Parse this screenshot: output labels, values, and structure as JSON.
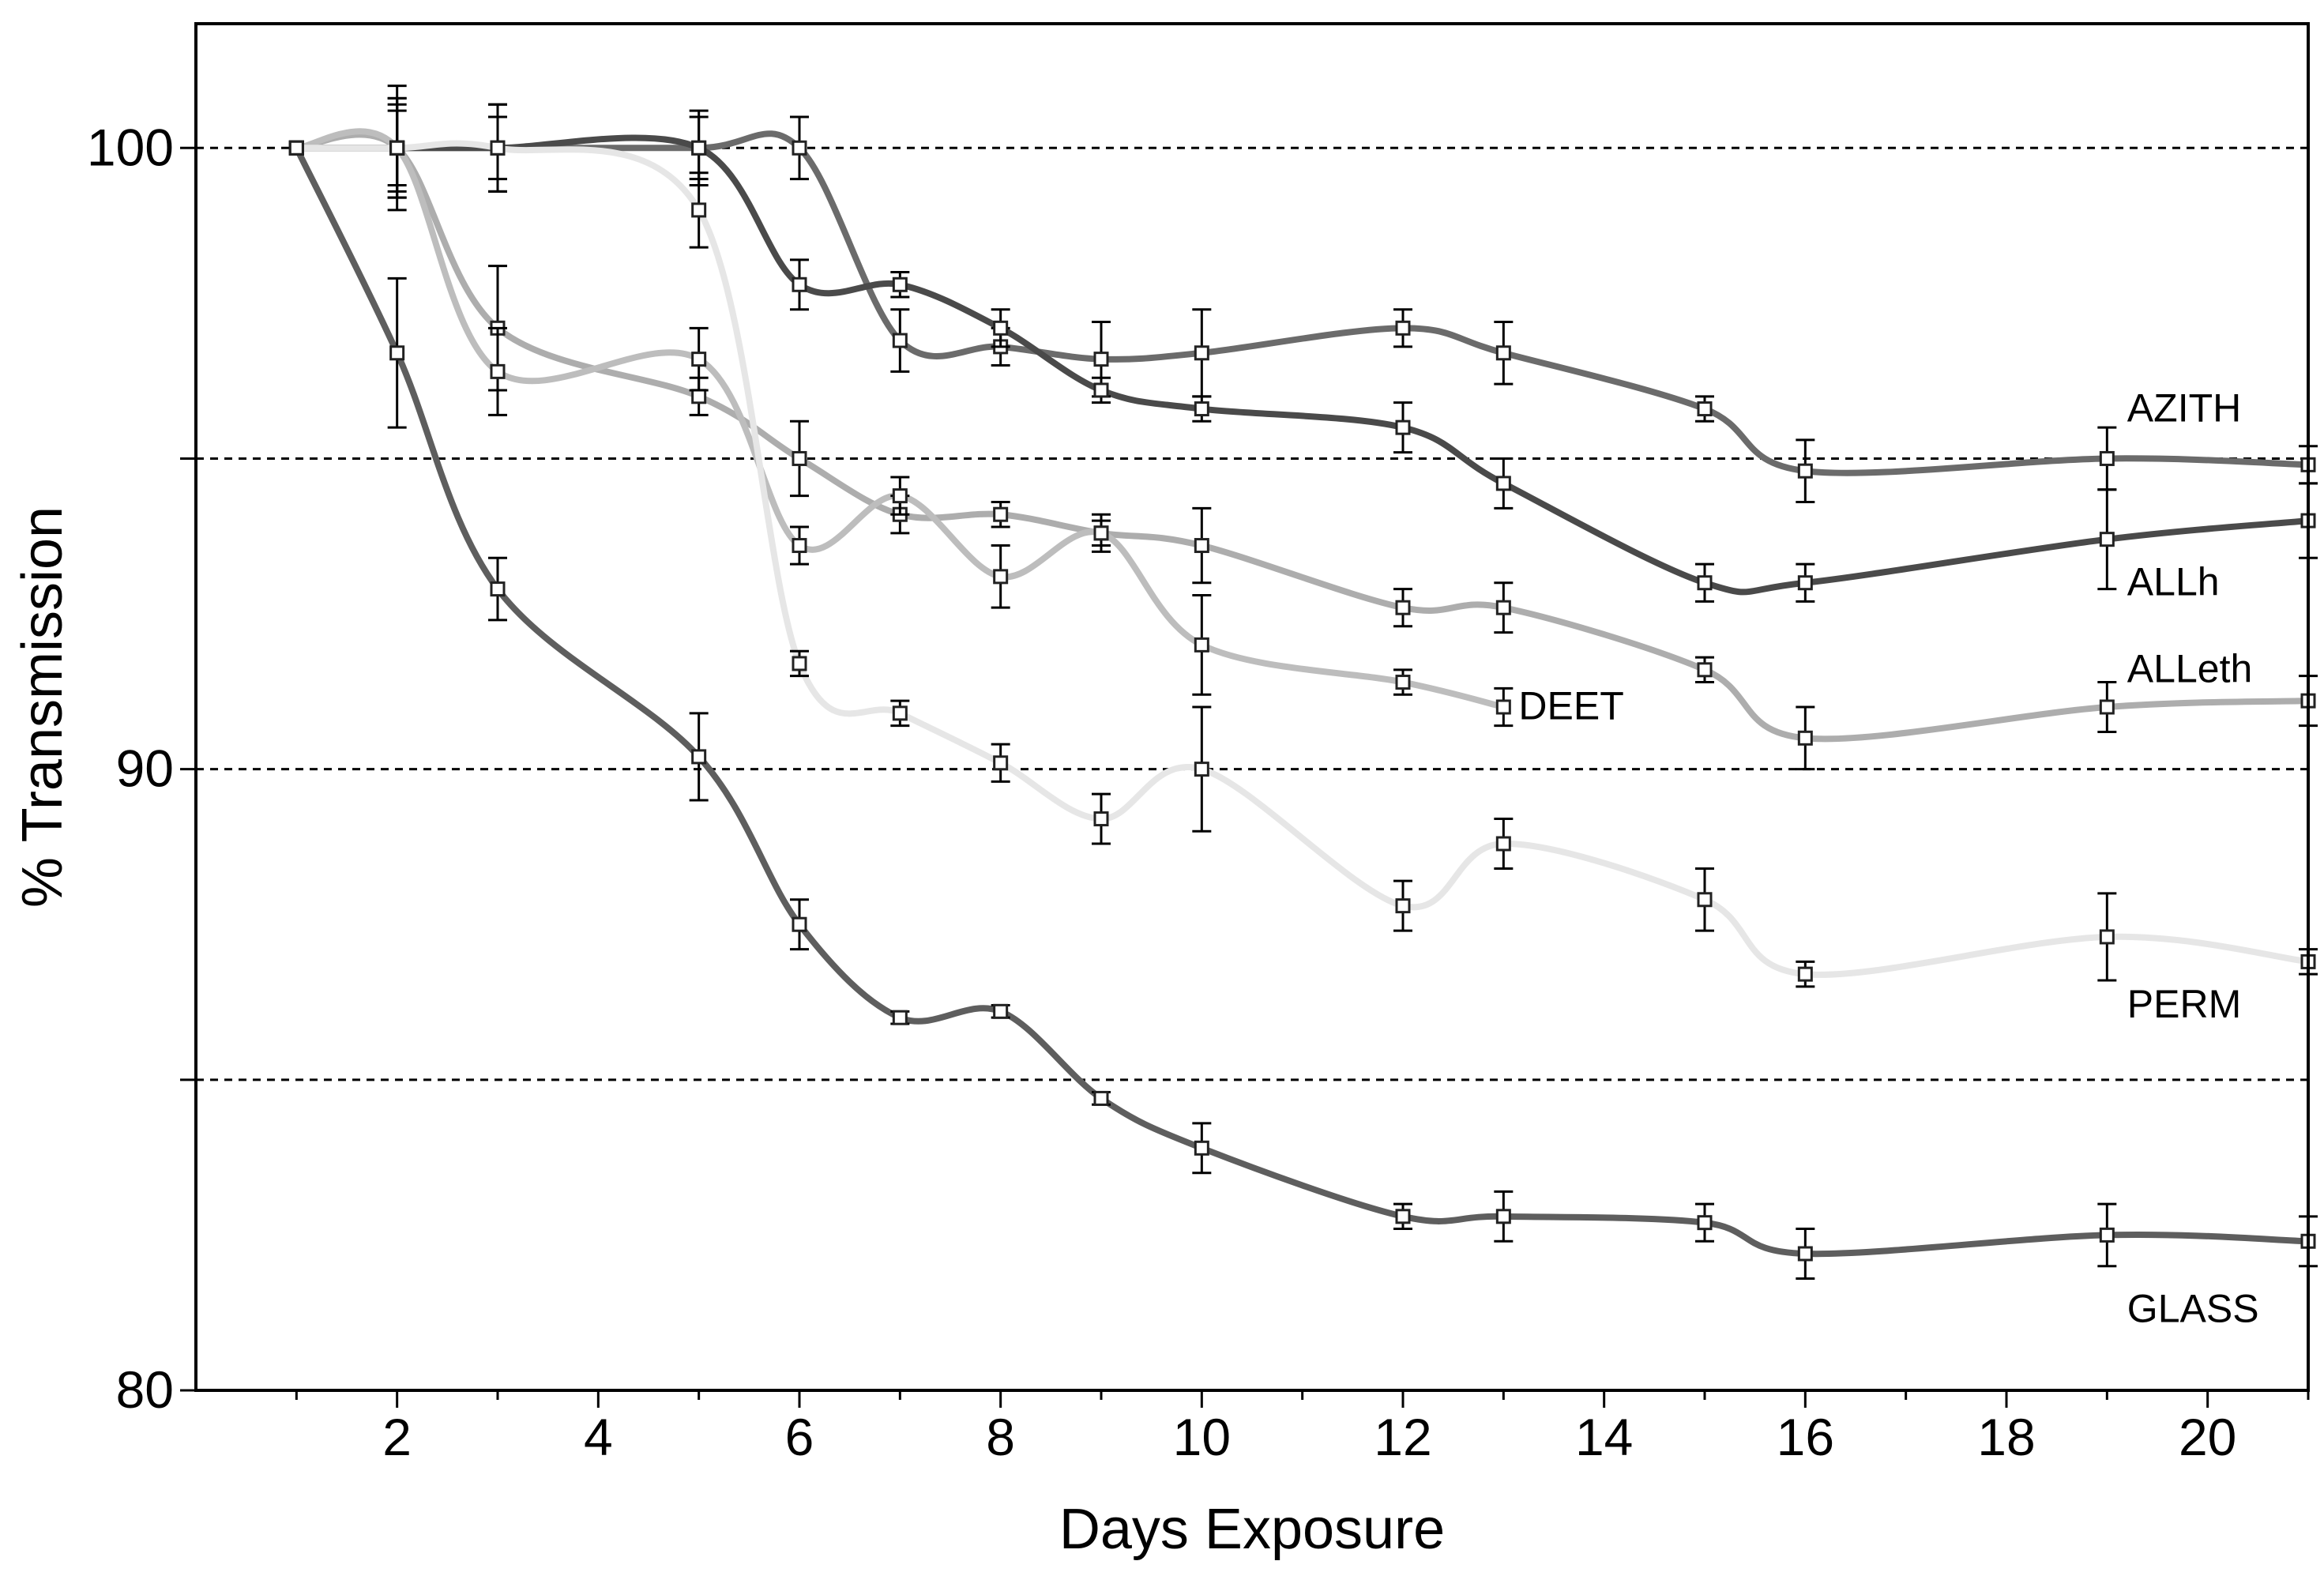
{
  "chart_data": {
    "type": "line",
    "xlabel": "Days Exposure",
    "ylabel": "% Transmission",
    "xlim": [
      0,
      21
    ],
    "ylim": [
      80,
      102
    ],
    "xticks_labeled": [
      2,
      4,
      6,
      8,
      10,
      12,
      14,
      16,
      18,
      20
    ],
    "yticks_labeled": [
      80,
      90,
      100
    ],
    "gridlines_y": [
      85,
      90,
      95,
      100
    ],
    "grid_style": "dashed horizontal",
    "series": [
      {
        "name": "AZITH",
        "color": "#6b6b6b",
        "x": [
          1,
          2,
          3,
          5,
          6,
          7,
          8,
          9,
          10,
          12,
          13,
          15,
          16,
          19,
          21
        ],
        "y": [
          100,
          100,
          100,
          100,
          100,
          96.9,
          96.8,
          96.6,
          96.7,
          97.1,
          96.7,
          95.8,
          94.8,
          95.0,
          94.9
        ],
        "err": [
          0,
          0.8,
          0.5,
          0.5,
          0.5,
          0.5,
          0.3,
          0.6,
          0.7,
          0.3,
          0.5,
          0.2,
          0.5,
          0.5,
          0.3
        ]
      },
      {
        "name": "ALLh",
        "color": "#4a4a4a",
        "x": [
          1,
          2,
          3,
          5,
          6,
          7,
          8,
          9,
          10,
          12,
          13,
          15,
          16,
          19,
          21
        ],
        "y": [
          100,
          100,
          100,
          100,
          97.8,
          97.8,
          97.1,
          96.1,
          95.8,
          95.5,
          94.6,
          93.0,
          93.0,
          93.7,
          94.0
        ],
        "err": [
          0,
          0.8,
          0.7,
          0.6,
          0.4,
          0.2,
          0.3,
          0.2,
          0.2,
          0.4,
          0.4,
          0.3,
          0.3,
          0.8,
          0.6
        ]
      },
      {
        "name": "ALLeth",
        "color": "#adadad",
        "x": [
          1,
          2,
          3,
          5,
          6,
          7,
          8,
          9,
          10,
          12,
          13,
          15,
          16,
          19,
          21
        ],
        "y": [
          100,
          100,
          97.1,
          96.0,
          95.0,
          94.1,
          94.1,
          93.8,
          93.6,
          92.6,
          92.6,
          91.6,
          90.5,
          91.0,
          91.1
        ],
        "err": [
          0,
          0.7,
          1.0,
          0.3,
          0.6,
          0.3,
          0.2,
          0.2,
          0.6,
          0.3,
          0.4,
          0.2,
          0.5,
          0.4,
          0.4
        ]
      },
      {
        "name": "DEET",
        "color": "#bdbdbd",
        "x": [
          1,
          2,
          3,
          5,
          6,
          7,
          8,
          9,
          10,
          12,
          13
        ],
        "y": [
          100,
          100,
          96.4,
          96.6,
          93.6,
          94.4,
          93.1,
          93.8,
          92.0,
          91.4,
          91.0
        ],
        "err": [
          0,
          1.0,
          0.7,
          0.5,
          0.3,
          0.3,
          0.5,
          0.3,
          0.8,
          0.2,
          0.3
        ]
      },
      {
        "name": "PERM",
        "color": "#e6e6e6",
        "x": [
          1,
          2,
          3,
          5,
          6,
          7,
          8,
          9,
          10,
          12,
          13,
          15,
          16,
          19,
          21
        ],
        "y": [
          100,
          100,
          100,
          99.0,
          91.7,
          90.9,
          90.1,
          89.2,
          90.0,
          87.8,
          88.8,
          87.9,
          86.7,
          87.3,
          86.9
        ],
        "err": [
          0,
          0.6,
          0.7,
          0.6,
          0.2,
          0.2,
          0.3,
          0.4,
          1.0,
          0.4,
          0.4,
          0.5,
          0.2,
          0.7,
          0.2
        ]
      },
      {
        "name": "GLASS",
        "color": "#5e5e5e",
        "x": [
          1,
          2,
          3,
          5,
          6,
          7,
          8,
          9,
          10,
          12,
          13,
          15,
          16,
          19,
          21
        ],
        "y": [
          100,
          96.7,
          92.9,
          90.2,
          87.5,
          86.0,
          86.1,
          84.7,
          83.9,
          82.8,
          82.8,
          82.7,
          82.2,
          82.5,
          82.4
        ],
        "err": [
          0,
          1.2,
          0.5,
          0.7,
          0.4,
          0.1,
          0.1,
          0.1,
          0.4,
          0.2,
          0.4,
          0.3,
          0.4,
          0.5,
          0.4
        ]
      }
    ],
    "annotations": [
      {
        "text": "AZITH",
        "series": "AZITH"
      },
      {
        "text": "ALLh",
        "series": "ALLh"
      },
      {
        "text": "ALLeth",
        "series": "ALLeth"
      },
      {
        "text": "DEET",
        "series": "DEET"
      },
      {
        "text": "PERM",
        "series": "PERM"
      },
      {
        "text": "GLASS",
        "series": "GLASS"
      }
    ]
  }
}
